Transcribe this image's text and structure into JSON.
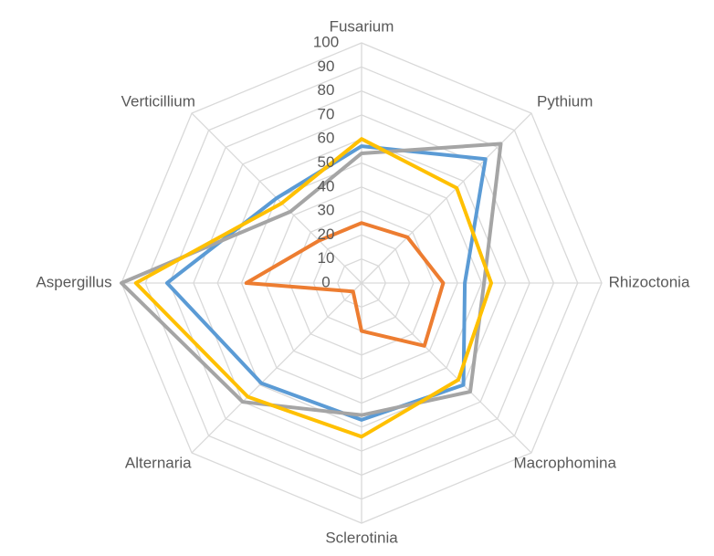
{
  "chart_data": {
    "type": "radar",
    "categories": [
      "Fusarium",
      "Pythium",
      "Rhizoctonia",
      "Macrophomina",
      "Sclerotinia",
      "Alternaria",
      "Aspergillus",
      "Verticillium"
    ],
    "series": [
      {
        "color": "#5b9bd5",
        "values": [
          57,
          73,
          43,
          60,
          57,
          59,
          81,
          50
        ]
      },
      {
        "color": "#ed7d31",
        "values": [
          25,
          27,
          34,
          37,
          20,
          5,
          48,
          25
        ]
      },
      {
        "color": "#a5a5a5",
        "values": [
          54,
          82,
          51,
          64,
          55,
          70,
          100,
          42
        ]
      },
      {
        "color": "#ffc000",
        "values": [
          60,
          56,
          54,
          57,
          64,
          67,
          94,
          47
        ]
      }
    ],
    "ylim": [
      0,
      100
    ],
    "yticks": [
      0,
      10,
      20,
      30,
      40,
      50,
      60,
      70,
      80,
      90,
      100
    ],
    "grid": true
  }
}
